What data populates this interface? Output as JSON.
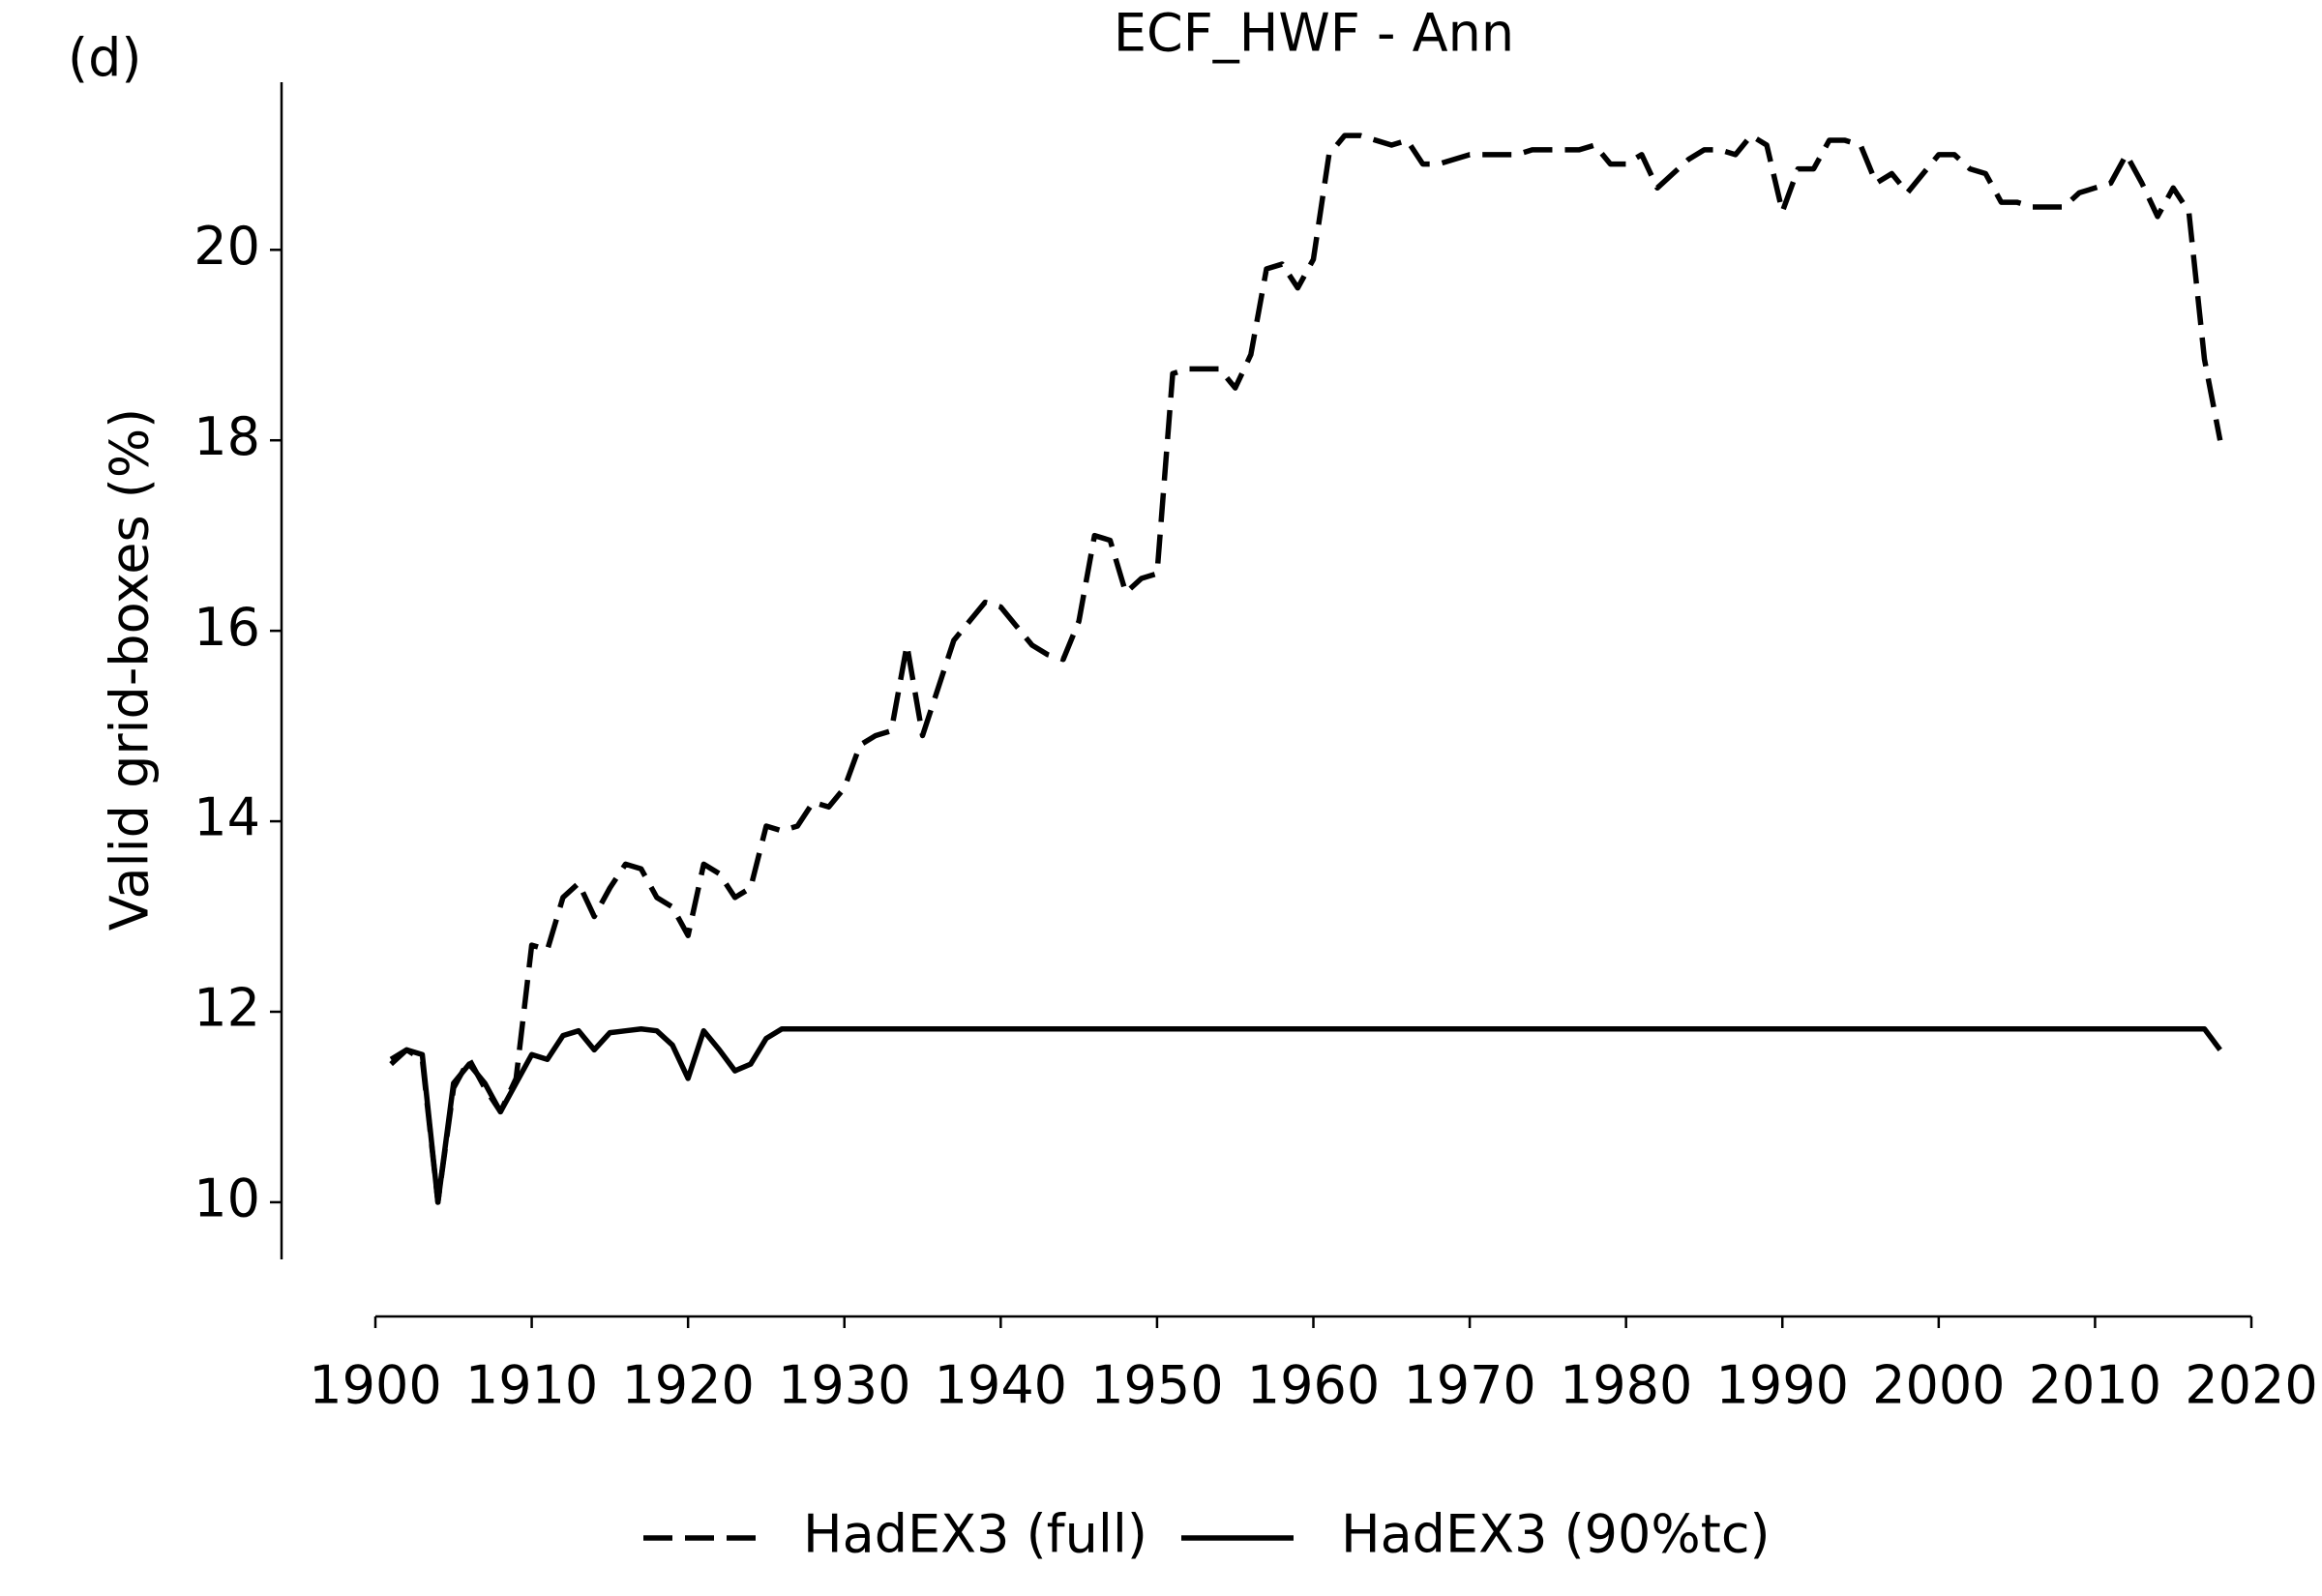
{
  "chart_data": {
    "type": "line",
    "title": "ECF_HWF - Ann",
    "panel_label": "(d)",
    "ylabel": "Valid grid-boxes (%)",
    "x": [
      1901,
      1902,
      1903,
      1904,
      1905,
      1906,
      1907,
      1908,
      1909,
      1910,
      1911,
      1912,
      1913,
      1914,
      1915,
      1916,
      1917,
      1918,
      1919,
      1920,
      1921,
      1922,
      1923,
      1924,
      1925,
      1926,
      1927,
      1928,
      1929,
      1930,
      1931,
      1932,
      1933,
      1934,
      1935,
      1936,
      1937,
      1938,
      1939,
      1940,
      1941,
      1942,
      1943,
      1944,
      1945,
      1946,
      1947,
      1948,
      1949,
      1950,
      1951,
      1952,
      1953,
      1954,
      1955,
      1956,
      1957,
      1958,
      1959,
      1960,
      1961,
      1962,
      1963,
      1964,
      1965,
      1966,
      1967,
      1968,
      1969,
      1970,
      1971,
      1972,
      1973,
      1974,
      1975,
      1976,
      1977,
      1978,
      1979,
      1980,
      1981,
      1982,
      1983,
      1984,
      1985,
      1986,
      1987,
      1988,
      1989,
      1990,
      1991,
      1992,
      1993,
      1994,
      1995,
      1996,
      1997,
      1998,
      1999,
      2000,
      2001,
      2002,
      2003,
      2004,
      2005,
      2006,
      2007,
      2008,
      2009,
      2010,
      2011,
      2012,
      2013,
      2014,
      2015,
      2016,
      2017,
      2018
    ],
    "series": [
      {
        "name": "HadEX3 (full)",
        "color": "#000000",
        "linestyle": "dashed",
        "values": [
          11.45,
          11.6,
          11.5,
          10.0,
          11.2,
          11.5,
          11.2,
          10.95,
          11.3,
          12.7,
          12.65,
          13.2,
          13.35,
          13.0,
          13.3,
          13.55,
          13.5,
          13.2,
          13.1,
          12.8,
          13.55,
          13.45,
          13.2,
          13.3,
          13.95,
          13.9,
          13.95,
          14.2,
          14.15,
          14.35,
          14.8,
          14.9,
          14.95,
          15.85,
          14.9,
          15.4,
          15.9,
          16.1,
          16.3,
          16.25,
          16.05,
          15.85,
          15.75,
          15.7,
          16.1,
          17.0,
          16.95,
          16.4,
          16.55,
          16.6,
          18.7,
          18.75,
          18.75,
          18.75,
          18.55,
          18.9,
          19.8,
          19.85,
          19.6,
          19.9,
          21.0,
          21.2,
          21.2,
          21.15,
          21.1,
          21.15,
          20.9,
          20.9,
          20.95,
          21.0,
          21.0,
          21.0,
          21.0,
          21.05,
          21.05,
          21.05,
          21.05,
          21.1,
          20.9,
          20.9,
          21.0,
          20.65,
          20.8,
          20.95,
          21.05,
          21.05,
          21.0,
          21.2,
          21.1,
          20.4,
          20.85,
          20.85,
          21.15,
          21.15,
          21.1,
          20.7,
          20.8,
          20.6,
          20.8,
          21.0,
          21.0,
          20.85,
          20.8,
          20.5,
          20.5,
          20.45,
          20.45,
          20.45,
          20.6,
          20.65,
          20.7,
          21.0,
          20.7,
          20.35,
          20.65,
          20.4,
          18.85,
          18.0
        ]
      },
      {
        "name": "HadEX3 (90%tc)",
        "color": "#000000",
        "linestyle": "solid",
        "values": [
          11.5,
          11.6,
          11.55,
          10.0,
          11.25,
          11.45,
          11.25,
          10.95,
          11.25,
          11.55,
          11.5,
          11.75,
          11.8,
          11.6,
          11.78,
          11.8,
          11.82,
          11.8,
          11.65,
          11.3,
          11.8,
          11.6,
          11.38,
          11.45,
          11.72,
          11.82,
          11.82,
          11.82,
          11.82,
          11.82,
          11.82,
          11.82,
          11.82,
          11.82,
          11.82,
          11.82,
          11.82,
          11.82,
          11.82,
          11.82,
          11.82,
          11.82,
          11.82,
          11.82,
          11.82,
          11.82,
          11.82,
          11.82,
          11.82,
          11.82,
          11.82,
          11.82,
          11.82,
          11.82,
          11.82,
          11.82,
          11.82,
          11.82,
          11.82,
          11.82,
          11.82,
          11.82,
          11.82,
          11.82,
          11.82,
          11.82,
          11.82,
          11.82,
          11.82,
          11.82,
          11.82,
          11.82,
          11.82,
          11.82,
          11.82,
          11.82,
          11.82,
          11.82,
          11.82,
          11.82,
          11.82,
          11.82,
          11.82,
          11.82,
          11.82,
          11.82,
          11.82,
          11.82,
          11.82,
          11.82,
          11.82,
          11.82,
          11.82,
          11.82,
          11.82,
          11.82,
          11.82,
          11.82,
          11.82,
          11.82,
          11.82,
          11.82,
          11.82,
          11.82,
          11.82,
          11.82,
          11.82,
          11.82,
          11.82,
          11.82,
          11.82,
          11.82,
          11.82,
          11.82,
          11.82,
          11.82,
          11.82,
          11.6
        ]
      }
    ],
    "xlim": [
      1900,
      2020
    ],
    "xticks": [
      1900,
      1910,
      1920,
      1930,
      1940,
      1950,
      1960,
      1970,
      1980,
      1990,
      2000,
      2010,
      2020
    ],
    "ylim": [
      9.4,
      21.76
    ],
    "yticks": [
      10,
      12,
      14,
      16,
      18,
      20
    ],
    "grid": false,
    "legend": "below"
  }
}
